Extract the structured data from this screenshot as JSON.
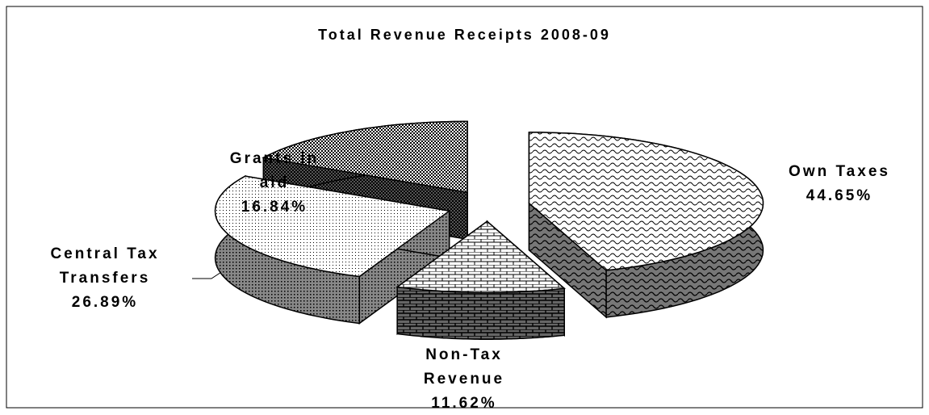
{
  "chart_data": {
    "type": "pie",
    "title": "Total Revenue Receipts 2008-09",
    "categories": [
      "Own Taxes",
      "Non-Tax Revenue",
      "Central Tax Transfers",
      "Grants in aid"
    ],
    "values": [
      44.65,
      11.62,
      26.89,
      16.84
    ],
    "value_labels": [
      "44.65%",
      "11.62%",
      "26.89%",
      "16.84%"
    ]
  }
}
